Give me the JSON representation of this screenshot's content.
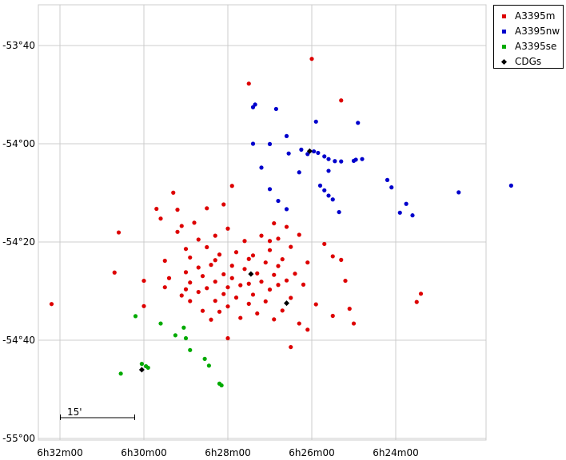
{
  "chart_data": {
    "type": "scatter",
    "title": "",
    "xlabel": "",
    "ylabel": "",
    "x_unit": "RA (minutes of time)",
    "y_unit": "Dec (degrees)",
    "xlim": [
      391.6,
      374.1
    ],
    "ylim": [
      -55.0,
      -53.8
    ],
    "x_ticks": [
      {
        "value": 392,
        "label": "6h32m00"
      },
      {
        "value": 390,
        "label": "6h30m00"
      },
      {
        "value": 388,
        "label": "6h28m00"
      },
      {
        "value": 386,
        "label": "6h26m00"
      },
      {
        "value": 384,
        "label": "6h24m00"
      }
    ],
    "y_ticks": [
      {
        "value": -53.6667,
        "label": "-53°40"
      },
      {
        "value": -54.0,
        "label": "-54°00"
      },
      {
        "value": -54.3333,
        "label": "-54°20"
      },
      {
        "value": -54.6667,
        "label": "-54°40"
      },
      {
        "value": -55.0,
        "label": "-55°00"
      }
    ],
    "grid": true,
    "legend_position": "top-right-outside",
    "scalebar_label": "15'",
    "legend": [
      {
        "name": "A3395m",
        "color": "#dd0000",
        "marker": "square"
      },
      {
        "name": "A3395nw",
        "color": "#0000cc",
        "marker": "square"
      },
      {
        "name": "A3395se",
        "color": "#00aa00",
        "marker": "square"
      },
      {
        "name": "CDGs",
        "color": "#000000",
        "marker": "diamond"
      }
    ],
    "series": [
      {
        "name": "A3395m",
        "color": "#dd0000",
        "points": [
          [
            386.0,
            -53.712
          ],
          [
            387.5,
            -53.796
          ],
          [
            385.3,
            -53.853
          ],
          [
            392.2,
            -54.544
          ],
          [
            390.6,
            -54.301
          ],
          [
            390.0,
            -54.465
          ],
          [
            390.0,
            -54.551
          ],
          [
            389.5,
            -54.487
          ],
          [
            389.4,
            -54.456
          ],
          [
            389.5,
            -54.397
          ],
          [
            389.2,
            -54.299
          ],
          [
            389.2,
            -54.224
          ],
          [
            389.1,
            -54.279
          ],
          [
            389.0,
            -54.357
          ],
          [
            389.0,
            -54.436
          ],
          [
            389.0,
            -54.494
          ],
          [
            388.9,
            -54.386
          ],
          [
            388.9,
            -54.471
          ],
          [
            388.9,
            -54.534
          ],
          [
            388.8,
            -54.268
          ],
          [
            388.7,
            -54.325
          ],
          [
            388.7,
            -54.42
          ],
          [
            388.7,
            -54.503
          ],
          [
            388.6,
            -54.449
          ],
          [
            388.6,
            -54.567
          ],
          [
            388.5,
            -54.219
          ],
          [
            388.5,
            -54.351
          ],
          [
            388.5,
            -54.49
          ],
          [
            388.4,
            -54.411
          ],
          [
            388.4,
            -54.597
          ],
          [
            388.3,
            -54.312
          ],
          [
            388.3,
            -54.468
          ],
          [
            388.3,
            -54.533
          ],
          [
            388.2,
            -54.376
          ],
          [
            388.2,
            -54.57
          ],
          [
            388.1,
            -54.443
          ],
          [
            388.1,
            -54.51
          ],
          [
            388.0,
            -54.288
          ],
          [
            388.0,
            -54.487
          ],
          [
            388.0,
            -54.552
          ],
          [
            387.9,
            -54.414
          ],
          [
            387.9,
            -54.456
          ],
          [
            387.8,
            -54.368
          ],
          [
            387.8,
            -54.522
          ],
          [
            387.7,
            -54.48
          ],
          [
            387.7,
            -54.591
          ],
          [
            387.6,
            -54.33
          ],
          [
            387.6,
            -54.425
          ],
          [
            387.5,
            -54.475
          ],
          [
            387.5,
            -54.543
          ],
          [
            387.4,
            -54.379
          ],
          [
            387.4,
            -54.512
          ],
          [
            387.3,
            -54.44
          ],
          [
            387.3,
            -54.576
          ],
          [
            387.2,
            -54.312
          ],
          [
            387.2,
            -54.468
          ],
          [
            387.1,
            -54.403
          ],
          [
            387.1,
            -54.535
          ],
          [
            387.0,
            -54.361
          ],
          [
            387.0,
            -54.495
          ],
          [
            386.9,
            -54.445
          ],
          [
            386.9,
            -54.596
          ],
          [
            386.8,
            -54.322
          ],
          [
            386.8,
            -54.479
          ],
          [
            386.7,
            -54.392
          ],
          [
            386.7,
            -54.566
          ],
          [
            386.6,
            -54.464
          ],
          [
            386.5,
            -54.35
          ],
          [
            386.5,
            -54.523
          ],
          [
            386.4,
            -54.441
          ],
          [
            386.3,
            -54.309
          ],
          [
            386.3,
            -54.61
          ],
          [
            386.2,
            -54.478
          ],
          [
            386.1,
            -54.403
          ],
          [
            386.1,
            -54.631
          ],
          [
            385.9,
            -54.545
          ],
          [
            385.7,
            -54.34
          ],
          [
            385.5,
            -54.382
          ],
          [
            385.5,
            -54.584
          ],
          [
            385.3,
            -54.394
          ],
          [
            385.2,
            -54.465
          ],
          [
            385.1,
            -54.56
          ],
          [
            388.0,
            -54.66
          ],
          [
            386.5,
            -54.69
          ],
          [
            385.0,
            -54.61
          ],
          [
            383.5,
            -54.537
          ],
          [
            383.4,
            -54.509
          ],
          [
            374.1,
            -54.658
          ],
          [
            389.7,
            -54.221
          ],
          [
            389.6,
            -54.254
          ],
          [
            389.3,
            -54.166
          ],
          [
            388.1,
            -54.206
          ],
          [
            387.9,
            -54.143
          ],
          [
            387.0,
            -54.33
          ],
          [
            386.9,
            -54.27
          ],
          [
            386.6,
            -54.282
          ],
          [
            388.3,
            -54.395
          ],
          [
            387.5,
            -54.391
          ],
          [
            386.8,
            -54.415
          ],
          [
            389.1,
            -54.515
          ],
          [
            390.7,
            -54.437
          ]
        ]
      },
      {
        "name": "A3395nw",
        "color": "#0000cc",
        "points": [
          [
            387.4,
            -53.876
          ],
          [
            387.35,
            -53.867
          ],
          [
            386.85,
            -53.882
          ],
          [
            385.9,
            -53.925
          ],
          [
            384.9,
            -53.929
          ],
          [
            386.6,
            -53.974
          ],
          [
            387.4,
            -54.0
          ],
          [
            387.0,
            -54.001
          ],
          [
            386.55,
            -54.033
          ],
          [
            386.25,
            -54.02
          ],
          [
            386.1,
            -54.035
          ],
          [
            385.95,
            -54.026
          ],
          [
            385.85,
            -54.031
          ],
          [
            385.7,
            -54.043
          ],
          [
            385.6,
            -54.052
          ],
          [
            385.45,
            -54.059
          ],
          [
            385.3,
            -54.06
          ],
          [
            385.0,
            -54.058
          ],
          [
            384.95,
            -54.054
          ],
          [
            384.8,
            -54.052
          ],
          [
            385.6,
            -54.092
          ],
          [
            386.3,
            -54.097
          ],
          [
            387.2,
            -54.081
          ],
          [
            385.8,
            -54.142
          ],
          [
            385.5,
            -54.189
          ],
          [
            385.35,
            -54.232
          ],
          [
            384.2,
            -54.123
          ],
          [
            384.1,
            -54.148
          ],
          [
            383.75,
            -54.204
          ],
          [
            383.9,
            -54.234
          ],
          [
            383.6,
            -54.243
          ],
          [
            382.5,
            -54.165
          ],
          [
            381.25,
            -54.142
          ],
          [
            385.7,
            -54.158
          ],
          [
            385.6,
            -54.176
          ],
          [
            386.6,
            -54.222
          ],
          [
            386.8,
            -54.194
          ],
          [
            387.0,
            -54.154
          ]
        ]
      },
      {
        "name": "A3395se",
        "color": "#00aa00",
        "points": [
          [
            390.2,
            -54.585
          ],
          [
            389.6,
            -54.61
          ],
          [
            389.25,
            -54.65
          ],
          [
            389.05,
            -54.624
          ],
          [
            389.0,
            -54.66
          ],
          [
            388.9,
            -54.7
          ],
          [
            388.55,
            -54.73
          ],
          [
            388.45,
            -54.753
          ],
          [
            388.2,
            -54.814
          ],
          [
            388.15,
            -54.82
          ],
          [
            389.9,
            -54.76
          ],
          [
            389.95,
            -54.755
          ],
          [
            390.05,
            -54.747
          ],
          [
            390.55,
            -54.78
          ]
        ]
      },
      {
        "name": "CDGs",
        "color": "#000000",
        "points": [
          [
            387.45,
            -54.442
          ],
          [
            386.6,
            -54.541
          ],
          [
            386.05,
            -54.025
          ],
          [
            390.05,
            -54.767
          ]
        ]
      }
    ]
  }
}
